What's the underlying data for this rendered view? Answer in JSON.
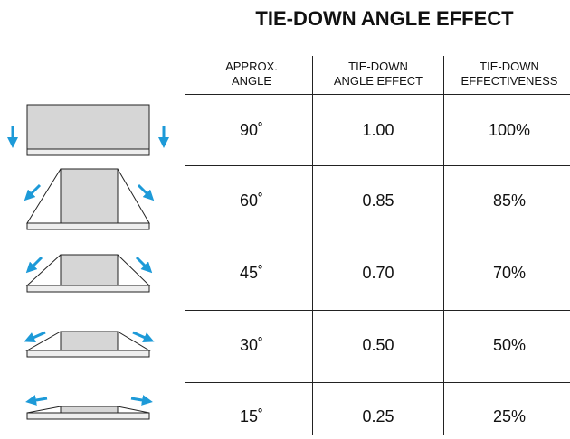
{
  "title": "TIE-DOWN ANGLE EFFECT",
  "table": {
    "header": [
      [
        "APPROX.",
        "ANGLE"
      ],
      [
        "TIE-DOWN",
        "ANGLE EFFECT"
      ],
      [
        "TIE-DOWN",
        "EFFECTIVENESS"
      ]
    ],
    "rows": [
      [
        "90˚",
        "1.00",
        "100%"
      ],
      [
        "60˚",
        "0.85",
        "85%"
      ],
      [
        "45˚",
        "0.70",
        "70%"
      ],
      [
        "30˚",
        "0.50",
        "50%"
      ],
      [
        "15˚",
        "0.25",
        "25%"
      ]
    ]
  }
}
